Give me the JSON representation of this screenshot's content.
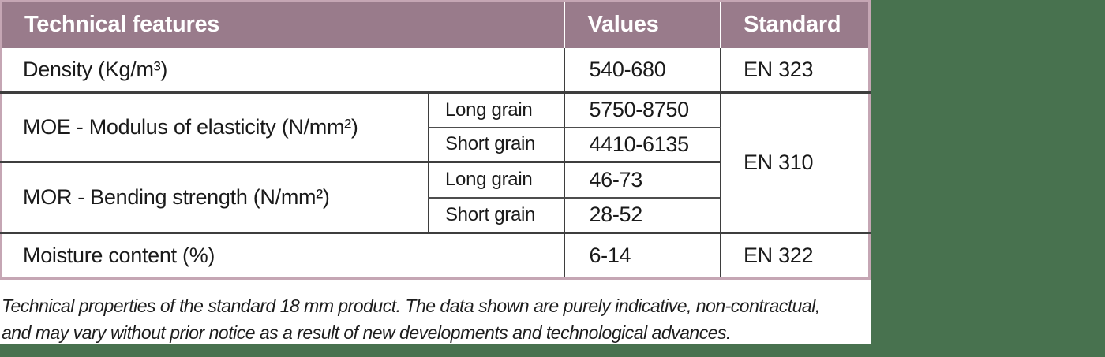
{
  "colors": {
    "header_bg": "#997b8b",
    "header_text": "#ffffff",
    "table_border": "#c5a6b4",
    "grid_thick": "#3e3e3e",
    "grid_thin": "#4d4d4d",
    "page_background": "#48724f",
    "panel_background": "#ffffff",
    "body_text": "#1a1a1a",
    "footnote_text": "#1d1d1d"
  },
  "table": {
    "header": {
      "features": "Technical features",
      "values": "Values",
      "standard": "Standard"
    },
    "rows": {
      "density": {
        "feature": "Density (Kg/m³)",
        "value": "540-680",
        "standard": "EN 323"
      },
      "moe": {
        "feature": "MOE - Modulus of elasticity (N/mm²)",
        "long_label": "Long grain",
        "long_value": "5750-8750",
        "short_label": "Short grain",
        "short_value": "4410-6135"
      },
      "mor": {
        "feature": "MOR - Bending strength (N/mm²)",
        "long_label": "Long grain",
        "long_value": "46-73",
        "short_label": "Short grain",
        "short_value": "28-52"
      },
      "moe_mor_standard": "EN 310",
      "moisture": {
        "feature": "Moisture content (%)",
        "value": "6-14",
        "standard": "EN 322"
      }
    }
  },
  "footnote": {
    "lines": [
      "Technical properties of the standard 18 mm product. The data shown are purely indicative, non-contractual,",
      "and may vary without prior notice as a result of new developments and technological advances."
    ]
  }
}
